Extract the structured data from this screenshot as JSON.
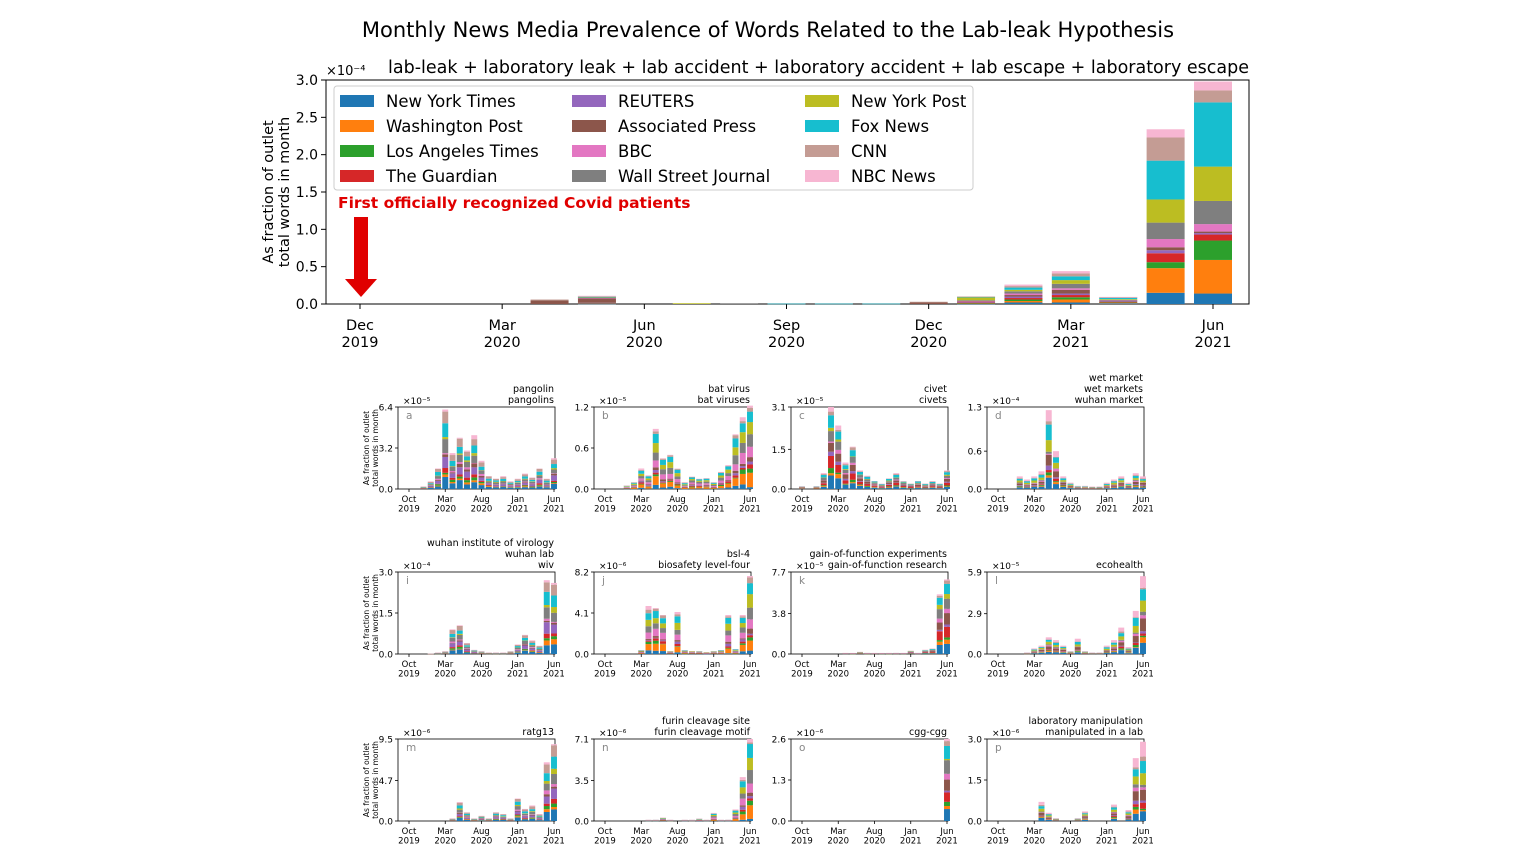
{
  "page_title": "Monthly News Media Prevalence of Words Related to the Lab-leak Hypothesis",
  "colors": {
    "New York Times": "#1f77b4",
    "Washington Post": "#ff7f0e",
    "Los Angeles Times": "#2ca02c",
    "The Guardian": "#d62728",
    "REUTERS": "#9467bd",
    "Associated Press": "#8c564b",
    "BBC": "#e377c2",
    "Wall Street Journal": "#7f7f7f",
    "New York Post": "#bcbd22",
    "Fox News": "#17becf",
    "CNN": "#c49c94",
    "NBC News": "#f7b6d2"
  },
  "annotation": {
    "text": "First officially recognized Covid patients",
    "color": "#e00000"
  },
  "chart_data": [
    {
      "id": "main",
      "type": "bar",
      "stacked": true,
      "title": "lab-leak + laboratory leak + lab accident + laboratory accident + lab escape + laboratory escape",
      "ylabel": [
        "As fraction of outlet",
        "total words in month"
      ],
      "exponent": "×10⁻⁴",
      "ylim": [
        0,
        3.0
      ],
      "yticks": [
        "0.0",
        "0.5",
        "1.0",
        "1.5",
        "2.0",
        "2.5",
        "3.0"
      ],
      "x": [
        "Dec 2019",
        "Jan 2020",
        "Feb 2020",
        "Mar 2020",
        "Apr 2020",
        "May 2020",
        "Jun 2020",
        "Jul 2020",
        "Aug 2020",
        "Sep 2020",
        "Oct 2020",
        "Nov 2020",
        "Dec 2020",
        "Jan 2021",
        "Feb 2021",
        "Mar 2021",
        "Apr 2021",
        "May 2021",
        "Jun 2021"
      ],
      "xticks": [
        [
          "Dec",
          "2019"
        ],
        [
          "Mar",
          "2020"
        ],
        [
          "Jun",
          "2020"
        ],
        [
          "Sep",
          "2020"
        ],
        [
          "Dec",
          "2020"
        ],
        [
          "Mar",
          "2021"
        ],
        [
          "Jun",
          "2021"
        ]
      ],
      "xtick_index": [
        0,
        3,
        6,
        9,
        12,
        15,
        18
      ],
      "legend": [
        "New York Times",
        "Washington Post",
        "Los Angeles Times",
        "The Guardian",
        "REUTERS",
        "Associated Press",
        "BBC",
        "Wall Street Journal",
        "New York Post",
        "Fox News",
        "CNN",
        "NBC News"
      ],
      "series": [
        {
          "name": "New York Times",
          "values": [
            0,
            0,
            0,
            0,
            0,
            0.004,
            0,
            0,
            0,
            0,
            0,
            0,
            0,
            0.005,
            0.02,
            0.02,
            0.01,
            0.15,
            0.14
          ]
        },
        {
          "name": "Washington Post",
          "values": [
            0,
            0,
            0,
            0,
            0,
            0.003,
            0,
            0,
            0,
            0,
            0,
            0,
            0,
            0.005,
            0.02,
            0.04,
            0.01,
            0.33,
            0.45
          ]
        },
        {
          "name": "Los Angeles Times",
          "values": [
            0,
            0,
            0,
            0,
            0,
            0.002,
            0,
            0,
            0,
            0,
            0,
            0,
            0,
            0.005,
            0.02,
            0.03,
            0.005,
            0.08,
            0.26
          ]
        },
        {
          "name": "The Guardian",
          "values": [
            0,
            0,
            0,
            0,
            0,
            0.004,
            0,
            0,
            0,
            0,
            0,
            0,
            0,
            0.005,
            0.02,
            0.03,
            0.005,
            0.12,
            0.08
          ]
        },
        {
          "name": "REUTERS",
          "values": [
            0,
            0,
            0,
            0,
            0,
            0.003,
            0,
            0,
            0,
            0,
            0,
            0,
            0,
            0.005,
            0.02,
            0.02,
            0.005,
            0.04,
            0.02
          ]
        },
        {
          "name": "Associated Press",
          "values": [
            0,
            0,
            0,
            0,
            0.05,
            0.06,
            0,
            0,
            0,
            0,
            0,
            0,
            0.02,
            0.01,
            0.02,
            0.05,
            0.01,
            0.04,
            0.02
          ]
        },
        {
          "name": "BBC",
          "values": [
            0,
            0,
            0,
            0,
            0,
            0.005,
            0,
            0,
            0,
            0,
            0,
            0,
            0,
            0.005,
            0.02,
            0.02,
            0.005,
            0.11,
            0.1
          ]
        },
        {
          "name": "Wall Street Journal",
          "values": [
            0,
            0,
            0,
            0,
            0,
            0.006,
            0,
            0,
            0.01,
            0,
            0,
            0,
            0,
            0.01,
            0.03,
            0.06,
            0.005,
            0.22,
            0.31
          ]
        },
        {
          "name": "New York Post",
          "values": [
            0,
            0,
            0,
            0,
            0,
            0.005,
            0,
            0.01,
            0,
            0,
            0,
            0,
            0,
            0.04,
            0.02,
            0.05,
            0.01,
            0.31,
            0.46
          ]
        },
        {
          "name": "Fox News",
          "values": [
            0,
            0,
            0,
            0,
            0,
            0.005,
            0,
            0,
            0,
            0.005,
            0.005,
            0.005,
            0,
            0.005,
            0.03,
            0.05,
            0.02,
            0.52,
            0.86
          ]
        },
        {
          "name": "CNN",
          "values": [
            0,
            0,
            0,
            0,
            0.01,
            0.01,
            0,
            0,
            0,
            0,
            0,
            0,
            0.01,
            0.005,
            0.02,
            0.04,
            0.005,
            0.31,
            0.16
          ]
        },
        {
          "name": "NBC News",
          "values": [
            0,
            0,
            0,
            0,
            0,
            0.003,
            0,
            0,
            0,
            0,
            0,
            0,
            0,
            0,
            0.02,
            0.03,
            0.005,
            0.11,
            0.12
          ]
        }
      ]
    },
    {
      "id": "a",
      "type": "bar",
      "stacked": true,
      "letter": "a",
      "title": [
        "pangolin",
        "pangolins"
      ],
      "exponent": "×10⁻⁵",
      "ylim": [
        0,
        6.4
      ],
      "yticks": [
        "0.0",
        "3.2",
        "6.4"
      ],
      "xticks": [
        [
          "Oct",
          "2019"
        ],
        [
          "Mar",
          "2020"
        ],
        [
          "Aug",
          "2020"
        ],
        [
          "Jan",
          "2021"
        ],
        [
          "Jun",
          "2021"
        ]
      ],
      "xtick_index": [
        0,
        5,
        10,
        15,
        20
      ],
      "totals": [
        0,
        0,
        0.2,
        0.6,
        1.6,
        6.2,
        2.8,
        4.0,
        3.0,
        4.2,
        2.2,
        1.0,
        0.8,
        1.0,
        0.6,
        0.8,
        1.2,
        0.9,
        1.6,
        0.8,
        2.4
      ]
    },
    {
      "id": "b",
      "type": "bar",
      "stacked": true,
      "letter": "b",
      "title": [
        "bat virus",
        "bat viruses"
      ],
      "exponent": "×10⁻⁵",
      "ylim": [
        0,
        1.2
      ],
      "yticks": [
        "0.0",
        "0.6",
        "1.2"
      ],
      "xticks": [
        [
          "Oct",
          "2019"
        ],
        [
          "Mar",
          "2020"
        ],
        [
          "Aug",
          "2020"
        ],
        [
          "Jan",
          "2021"
        ],
        [
          "Jun",
          "2021"
        ]
      ],
      "xtick_index": [
        0,
        5,
        10,
        15,
        20
      ],
      "totals": [
        0,
        0,
        0,
        0.05,
        0.1,
        0.3,
        0.2,
        0.88,
        0.45,
        0.5,
        0.3,
        0.1,
        0.18,
        0.15,
        0.16,
        0.1,
        0.25,
        0.35,
        0.8,
        1.05,
        1.22
      ]
    },
    {
      "id": "c",
      "type": "bar",
      "stacked": true,
      "letter": "c",
      "title": [
        "civet",
        "civets"
      ],
      "exponent": "×10⁻⁵",
      "ylim": [
        0,
        3.1
      ],
      "yticks": [
        "0.0",
        "1.5",
        "3.1"
      ],
      "xticks": [
        [
          "Oct",
          "2019"
        ],
        [
          "Mar",
          "2020"
        ],
        [
          "Aug",
          "2020"
        ],
        [
          "Jan",
          "2021"
        ],
        [
          "Jun",
          "2021"
        ]
      ],
      "xtick_index": [
        0,
        5,
        10,
        15,
        20
      ],
      "totals": [
        0.1,
        0,
        0.1,
        0.6,
        3.1,
        2.4,
        1.0,
        1.6,
        0.7,
        0.5,
        0.3,
        0.2,
        0.4,
        0.6,
        0.3,
        0.2,
        0.3,
        0.2,
        0.3,
        0.2,
        0.7
      ]
    },
    {
      "id": "d",
      "type": "bar",
      "stacked": true,
      "letter": "d",
      "title": [
        "wet market",
        "wet markets",
        "wuhan market"
      ],
      "exponent": "×10⁻⁴",
      "ylim": [
        0,
        1.3
      ],
      "yticks": [
        "0.0",
        "0.6",
        "1.3"
      ],
      "xticks": [
        [
          "Oct",
          "2019"
        ],
        [
          "Mar",
          "2020"
        ],
        [
          "Aug",
          "2020"
        ],
        [
          "Jan",
          "2021"
        ],
        [
          "Jun",
          "2021"
        ]
      ],
      "xtick_index": [
        0,
        5,
        10,
        15,
        20
      ],
      "totals": [
        0,
        0,
        0,
        0.2,
        0.15,
        0.2,
        0.28,
        1.25,
        0.6,
        0.2,
        0.1,
        0.05,
        0.05,
        0.04,
        0.04,
        0.1,
        0.15,
        0.2,
        0.1,
        0.25,
        0.2
      ]
    },
    {
      "id": "i",
      "type": "bar",
      "stacked": true,
      "letter": "i",
      "title": [
        "wuhan institute of virology",
        "wuhan lab",
        "wiv"
      ],
      "exponent": "×10⁻⁴",
      "ylim": [
        0,
        3.0
      ],
      "yticks": [
        "0.0",
        "1.5",
        "3.0"
      ],
      "xticks": [
        [
          "Oct",
          "2019"
        ],
        [
          "Mar",
          "2020"
        ],
        [
          "Aug",
          "2020"
        ],
        [
          "Jan",
          "2021"
        ],
        [
          "Jun",
          "2021"
        ]
      ],
      "xtick_index": [
        0,
        5,
        10,
        15,
        20
      ],
      "totals": [
        0,
        0,
        0,
        0.02,
        0.05,
        0.1,
        0.9,
        1.05,
        0.4,
        0.15,
        0.1,
        0.05,
        0.05,
        0.05,
        0.1,
        0.35,
        0.7,
        0.5,
        0.3,
        2.7,
        2.6
      ]
    },
    {
      "id": "j",
      "type": "bar",
      "stacked": true,
      "letter": "j",
      "title": [
        "bsl-4",
        "biosafety level-four"
      ],
      "exponent": "×10⁻⁶",
      "ylim": [
        0,
        8.2
      ],
      "yticks": [
        "0.0",
        "4.1",
        "8.2"
      ],
      "xticks": [
        [
          "Oct",
          "2019"
        ],
        [
          "Mar",
          "2020"
        ],
        [
          "Aug",
          "2020"
        ],
        [
          "Jan",
          "2021"
        ],
        [
          "Jun",
          "2021"
        ]
      ],
      "xtick_index": [
        0,
        5,
        10,
        15,
        20
      ],
      "totals": [
        0,
        0,
        0,
        0,
        0,
        0.4,
        4.8,
        4.6,
        3.9,
        0.3,
        4.2,
        0.4,
        0.3,
        0.3,
        0.2,
        0.3,
        0.4,
        3.9,
        0.5,
        3.9,
        7.8
      ]
    },
    {
      "id": "k",
      "type": "bar",
      "stacked": true,
      "letter": "k",
      "title": [
        "gain-of-function experiments",
        "gain-of-function research"
      ],
      "exponent": "×10⁻⁵",
      "ylim": [
        0,
        7.7
      ],
      "yticks": [
        "0.0",
        "3.8",
        "7.7"
      ],
      "xticks": [
        [
          "Oct",
          "2019"
        ],
        [
          "Mar",
          "2020"
        ],
        [
          "Aug",
          "2020"
        ],
        [
          "Jan",
          "2021"
        ],
        [
          "Jun",
          "2021"
        ]
      ],
      "xtick_index": [
        0,
        5,
        10,
        15,
        20
      ],
      "totals": [
        0,
        0,
        0,
        0,
        0,
        0,
        0.1,
        0.1,
        0.2,
        0.1,
        0.1,
        0.1,
        0.1,
        0.1,
        0.1,
        0.3,
        0.1,
        0.4,
        0.5,
        5.6,
        7.0
      ]
    },
    {
      "id": "l",
      "type": "bar",
      "stacked": true,
      "letter": "l",
      "title": [
        "ecohealth"
      ],
      "exponent": "×10⁻⁵",
      "ylim": [
        0,
        5.9
      ],
      "yticks": [
        "0.0",
        "2.9",
        "5.9"
      ],
      "xticks": [
        [
          "Oct",
          "2019"
        ],
        [
          "Mar",
          "2020"
        ],
        [
          "Aug",
          "2020"
        ],
        [
          "Jan",
          "2021"
        ],
        [
          "Jun",
          "2021"
        ]
      ],
      "xtick_index": [
        0,
        5,
        10,
        15,
        20
      ],
      "totals": [
        0,
        0,
        0,
        0,
        0.1,
        0.4,
        0.6,
        1.2,
        1.0,
        0.6,
        0.2,
        1.1,
        0.2,
        0.1,
        0.1,
        0.6,
        1.0,
        1.9,
        0.5,
        3.1,
        5.6
      ]
    },
    {
      "id": "m",
      "type": "bar",
      "stacked": true,
      "letter": "m",
      "title": [
        "ratg13"
      ],
      "exponent": "×10⁻⁶",
      "ylim": [
        0,
        9.5
      ],
      "yticks": [
        "0.0",
        "4.7",
        "9.5"
      ],
      "xticks": [
        [
          "Oct",
          "2019"
        ],
        [
          "Mar",
          "2020"
        ],
        [
          "Aug",
          "2020"
        ],
        [
          "Jan",
          "2021"
        ],
        [
          "Jun",
          "2021"
        ]
      ],
      "xtick_index": [
        0,
        5,
        10,
        15,
        20
      ],
      "totals": [
        0,
        0,
        0,
        0,
        0,
        0,
        0.3,
        2.2,
        1.0,
        0.3,
        0.6,
        0.3,
        1.0,
        0.8,
        0.3,
        2.6,
        1.4,
        1.8,
        0.8,
        6.8,
        8.9
      ]
    },
    {
      "id": "n",
      "type": "bar",
      "stacked": true,
      "letter": "n",
      "title": [
        "furin cleavage site",
        "furin cleavage motif"
      ],
      "exponent": "×10⁻⁶",
      "ylim": [
        0,
        7.1
      ],
      "yticks": [
        "0.0",
        "3.5",
        "7.1"
      ],
      "xticks": [
        [
          "Oct",
          "2019"
        ],
        [
          "Mar",
          "2020"
        ],
        [
          "Aug",
          "2020"
        ],
        [
          "Jan",
          "2021"
        ],
        [
          "Jun",
          "2021"
        ]
      ],
      "xtick_index": [
        0,
        5,
        10,
        15,
        20
      ],
      "totals": [
        0,
        0,
        0,
        0,
        0,
        0,
        0.1,
        0.1,
        0.3,
        0.1,
        0,
        0.1,
        0.1,
        0.2,
        0.1,
        0.7,
        0.1,
        0.1,
        1.0,
        3.8,
        7.1
      ]
    },
    {
      "id": "o",
      "type": "bar",
      "stacked": true,
      "letter": "o",
      "title": [
        "cgg-cgg"
      ],
      "exponent": "×10⁻⁶",
      "ylim": [
        0,
        2.6
      ],
      "yticks": [
        "0.0",
        "1.3",
        "2.6"
      ],
      "xticks": [
        [
          "Oct",
          "2019"
        ],
        [
          "Mar",
          "2020"
        ],
        [
          "Aug",
          "2020"
        ],
        [
          "Jan",
          "2021"
        ],
        [
          "Jun",
          "2021"
        ]
      ],
      "xtick_index": [
        0,
        5,
        10,
        15,
        20
      ],
      "totals": [
        0,
        0,
        0,
        0,
        0,
        0,
        0,
        0,
        0,
        0,
        0,
        0,
        0,
        0,
        0,
        0,
        0,
        0,
        0,
        0,
        2.6
      ]
    },
    {
      "id": "p",
      "type": "bar",
      "stacked": true,
      "letter": "p",
      "title": [
        "laboratory manipulation",
        "manipulated in a lab"
      ],
      "exponent": "×10⁻⁶",
      "ylim": [
        0,
        3.0
      ],
      "yticks": [
        "0.0",
        "1.5",
        "3.0"
      ],
      "xticks": [
        [
          "Oct",
          "2019"
        ],
        [
          "Mar",
          "2020"
        ],
        [
          "Aug",
          "2020"
        ],
        [
          "Jan",
          "2021"
        ],
        [
          "Jun",
          "2021"
        ]
      ],
      "xtick_index": [
        0,
        5,
        10,
        15,
        20
      ],
      "totals": [
        0,
        0,
        0,
        0,
        0,
        0,
        0.7,
        0.3,
        0.1,
        0,
        0,
        0.1,
        0.35,
        0,
        0,
        0,
        0.6,
        0,
        0.4,
        2.3,
        2.9
      ]
    }
  ],
  "small_ylabel": [
    "As fraction of outlet",
    "total words in month"
  ]
}
